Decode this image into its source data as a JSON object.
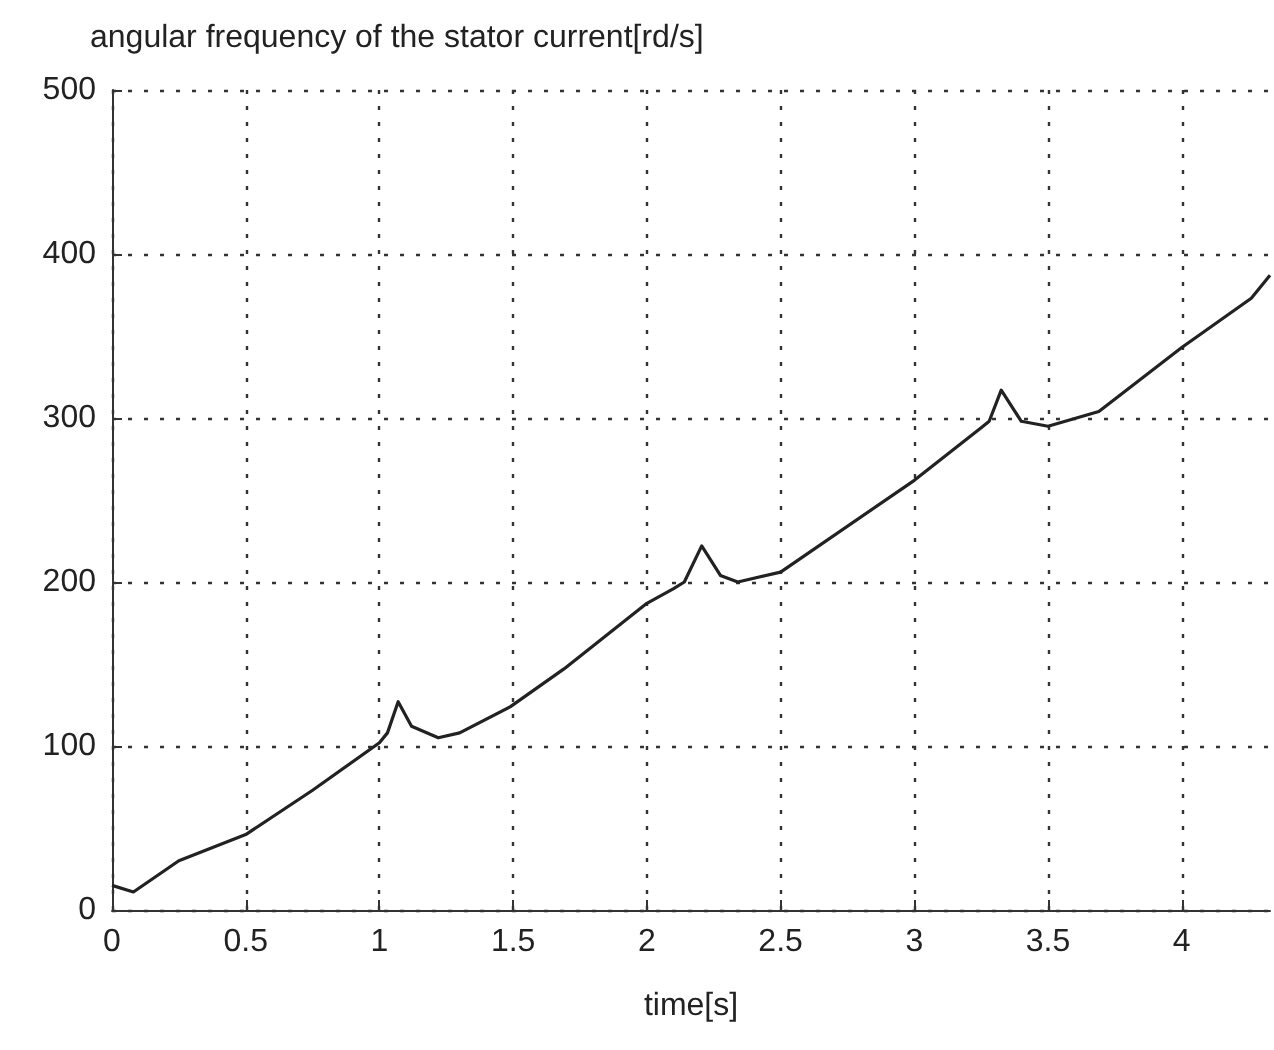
{
  "chart_data": {
    "type": "line",
    "title": "angular frequency of the stator current[rd/s]",
    "xlabel": "time[s]",
    "xlim": [
      0,
      4.33
    ],
    "xticks": [
      0,
      0.5,
      1,
      1.5,
      2,
      2.5,
      3,
      3.5,
      4
    ],
    "ylim": [
      0,
      500
    ],
    "yticks": [
      0,
      100,
      200,
      300,
      400,
      500
    ],
    "grid": true,
    "marker": "none",
    "line_style": "solid",
    "series": [
      {
        "color": "#222222",
        "x": [
          0,
          0.08,
          0.25,
          0.5,
          0.75,
          1,
          1.03,
          1.07,
          1.12,
          1.22,
          1.3,
          1.49,
          1.69,
          2,
          2.1,
          2.14,
          2.205,
          2.275,
          2.34,
          2.5,
          3,
          3.25,
          3.28,
          3.325,
          3.4,
          3.5,
          3.69,
          4,
          4.26,
          4.33
        ],
        "values": [
          15,
          11,
          30,
          46,
          73,
          102,
          108,
          127,
          112,
          105,
          108,
          124,
          147,
          187,
          196,
          200,
          222,
          204,
          200,
          206,
          262,
          294,
          298,
          317,
          298,
          295,
          304,
          343,
          373,
          387
        ]
      }
    ]
  }
}
